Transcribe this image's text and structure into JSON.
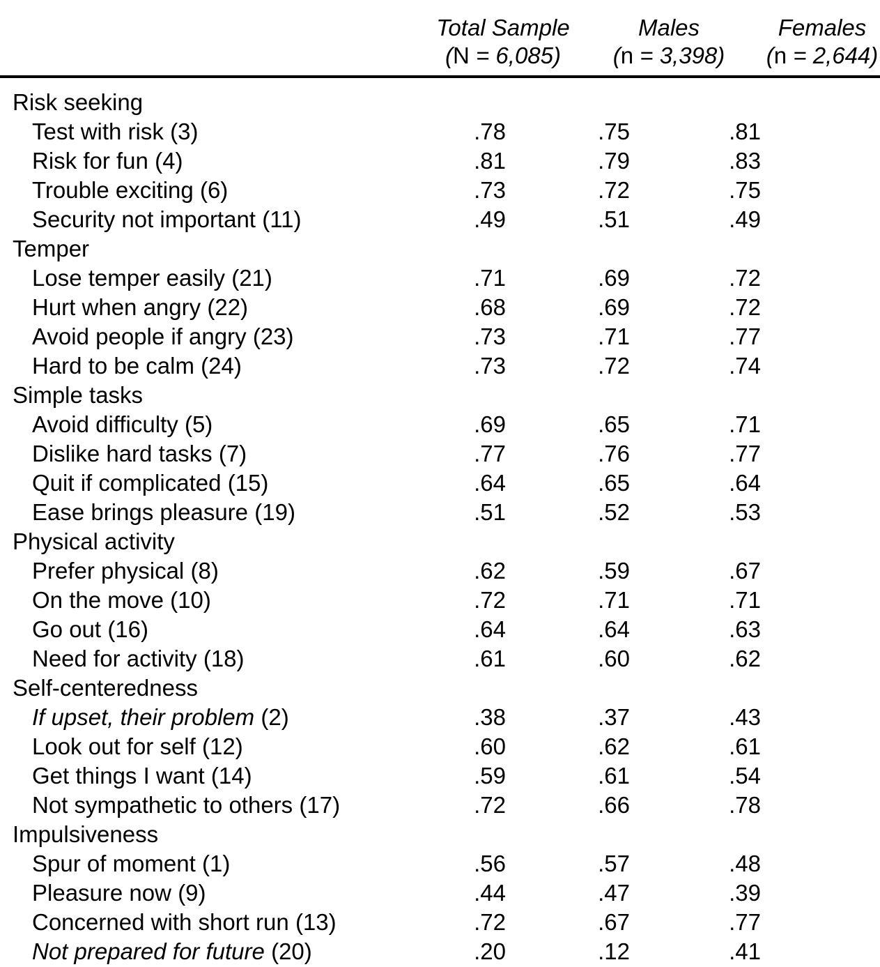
{
  "header": {
    "total": {
      "line1": "Total Sample",
      "open": "(",
      "symbol": "N",
      "rest": " = 6,085)"
    },
    "males": {
      "line1": "Males",
      "open": "(",
      "symbol": "n",
      "rest": " = 3,398)"
    },
    "females": {
      "line1": "Females",
      "open": "(",
      "symbol": "n",
      "rest": " = 2,644)"
    }
  },
  "table": {
    "sections": [
      {
        "title": "Risk seeking",
        "rows": [
          {
            "label": "Test with risk",
            "num": "(3)",
            "italic": false,
            "total": ".78",
            "males": ".75",
            "females": ".81"
          },
          {
            "label": "Risk for fun",
            "num": "(4)",
            "italic": false,
            "total": ".81",
            "males": ".79",
            "females": ".83"
          },
          {
            "label": "Trouble exciting",
            "num": "(6)",
            "italic": false,
            "total": ".73",
            "males": ".72",
            "females": ".75"
          },
          {
            "label": "Security not important",
            "num": "(11)",
            "italic": false,
            "total": ".49",
            "males": ".51",
            "females": ".49"
          }
        ]
      },
      {
        "title": "Temper",
        "rows": [
          {
            "label": "Lose temper easily",
            "num": "(21)",
            "italic": false,
            "total": ".71",
            "males": ".69",
            "females": ".72"
          },
          {
            "label": "Hurt when angry",
            "num": "(22)",
            "italic": false,
            "total": ".68",
            "males": ".69",
            "females": ".72"
          },
          {
            "label": "Avoid people if angry",
            "num": "(23)",
            "italic": false,
            "total": ".73",
            "males": ".71",
            "females": ".77"
          },
          {
            "label": "Hard to be calm",
            "num": "(24)",
            "italic": false,
            "total": ".73",
            "males": ".72",
            "females": ".74"
          }
        ]
      },
      {
        "title": "Simple tasks",
        "rows": [
          {
            "label": "Avoid difficulty",
            "num": "(5)",
            "italic": false,
            "total": ".69",
            "males": ".65",
            "females": ".71"
          },
          {
            "label": "Dislike hard tasks",
            "num": "(7)",
            "italic": false,
            "total": ".77",
            "males": ".76",
            "females": ".77"
          },
          {
            "label": "Quit if complicated",
            "num": "(15)",
            "italic": false,
            "total": ".64",
            "males": ".65",
            "females": ".64"
          },
          {
            "label": "Ease brings pleasure",
            "num": "(19)",
            "italic": false,
            "total": ".51",
            "males": ".52",
            "females": ".53"
          }
        ]
      },
      {
        "title": "Physical activity",
        "rows": [
          {
            "label": "Prefer physical",
            "num": "(8)",
            "italic": false,
            "total": ".62",
            "males": ".59",
            "females": ".67"
          },
          {
            "label": "On the move",
            "num": "(10)",
            "italic": false,
            "total": ".72",
            "males": ".71",
            "females": ".71"
          },
          {
            "label": "Go out",
            "num": "(16)",
            "italic": false,
            "total": ".64",
            "males": ".64",
            "females": ".63"
          },
          {
            "label": "Need for activity",
            "num": "(18)",
            "italic": false,
            "total": ".61",
            "males": ".60",
            "females": ".62"
          }
        ]
      },
      {
        "title": "Self-centeredness",
        "rows": [
          {
            "label": "If upset, their problem",
            "num": "(2)",
            "italic": true,
            "total": ".38",
            "males": ".37",
            "females": ".43"
          },
          {
            "label": "Look out for self",
            "num": "(12)",
            "italic": false,
            "total": ".60",
            "males": ".62",
            "females": ".61"
          },
          {
            "label": "Get things I want",
            "num": "(14)",
            "italic": false,
            "total": ".59",
            "males": ".61",
            "females": ".54"
          },
          {
            "label": "Not sympathetic to others",
            "num": "(17)",
            "italic": false,
            "total": ".72",
            "males": ".66",
            "females": ".78"
          }
        ]
      },
      {
        "title": "Impulsiveness",
        "rows": [
          {
            "label": "Spur of moment",
            "num": "(1)",
            "italic": false,
            "total": ".56",
            "males": ".57",
            "females": ".48"
          },
          {
            "label": "Pleasure now",
            "num": "(9)",
            "italic": false,
            "total": ".44",
            "males": ".47",
            "females": ".39"
          },
          {
            "label": "Concerned with short run",
            "num": "(13)",
            "italic": false,
            "total": ".72",
            "males": ".67",
            "females": ".77"
          },
          {
            "label": "Not prepared for future",
            "num": "(20)",
            "italic": true,
            "total": ".20",
            "males": ".12",
            "females": ".41"
          }
        ]
      }
    ]
  }
}
